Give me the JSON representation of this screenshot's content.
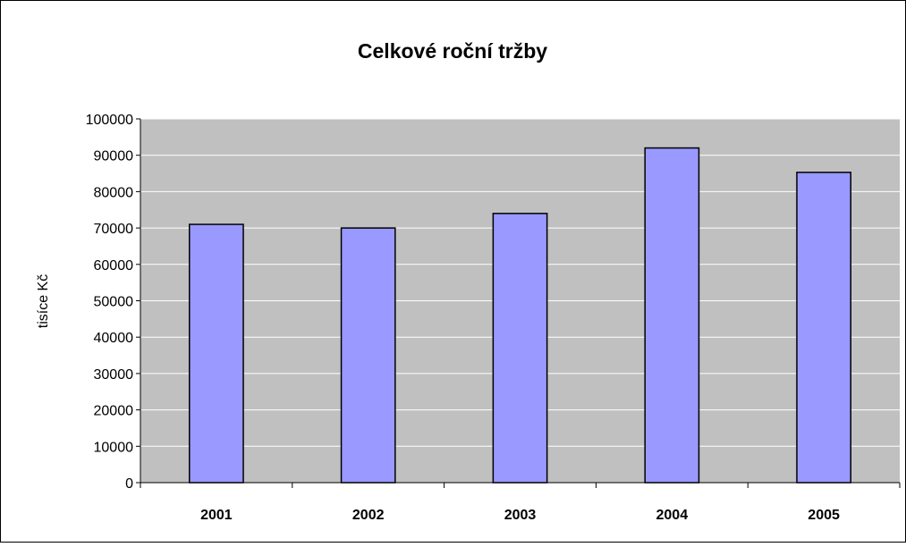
{
  "chart_data": {
    "type": "bar",
    "title": "Celkové roční tržby",
    "xlabel": "",
    "ylabel": "tisíce Kč",
    "categories": [
      "2001",
      "2002",
      "2003",
      "2004",
      "2005"
    ],
    "values": [
      71000,
      70000,
      74000,
      92000,
      85300
    ],
    "ylim": [
      0,
      100000
    ],
    "yticks": [
      0,
      10000,
      20000,
      30000,
      40000,
      50000,
      60000,
      70000,
      80000,
      90000,
      100000
    ],
    "grid": true,
    "legend": "none",
    "colors": {
      "bar_fill": "#9999ff",
      "bar_stroke": "#000000",
      "plot_background": "#c0c0c0",
      "gridline": "#ffffff",
      "axis": "#000000",
      "text": "#000000"
    }
  }
}
